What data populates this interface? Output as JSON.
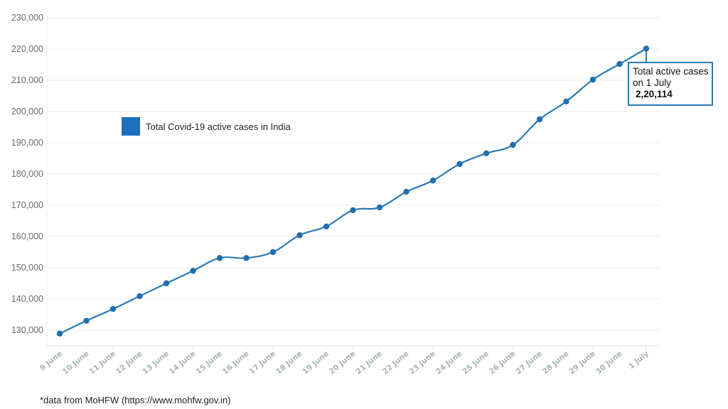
{
  "chart_data": {
    "type": "line",
    "title": "",
    "xlabel": "",
    "ylabel": "",
    "ylim": [
      125000,
      230000
    ],
    "grid": true,
    "legend_position": "inside-upper-left",
    "categories": [
      "9 June",
      "10 June",
      "11 June",
      "12 June",
      "13 June",
      "14 June",
      "15 June",
      "16 June",
      "17 June",
      "18 June",
      "19 June",
      "20 June",
      "21 June",
      "22 June",
      "23 June",
      "24 June",
      "25 June",
      "26 June",
      "27 June",
      "28 June",
      "29 June",
      "30 June",
      "1 July"
    ],
    "series": [
      {
        "name": "Total Covid-19 active cases in India",
        "color": "#2a7ab0",
        "values": [
          128900,
          133000,
          136800,
          140900,
          145000,
          149000,
          153100,
          153100,
          155000,
          160400,
          163200,
          168400,
          169300,
          174300,
          177900,
          183200,
          186600,
          189300,
          197500,
          203200,
          210200,
          215200,
          220114
        ]
      }
    ],
    "yticks": [
      "130,000",
      "140,000",
      "150,000",
      "160,000",
      "170,000",
      "180,000",
      "190,000",
      "200,000",
      "210,000",
      "220,000",
      "230,000"
    ],
    "ytick_values": [
      130000,
      140000,
      150000,
      160000,
      170000,
      180000,
      190000,
      200000,
      210000,
      220000,
      230000
    ],
    "annotations": [
      {
        "target": "1 July",
        "line1": "Total active cases",
        "line2": "on 1 July",
        "value": "2,20,114"
      }
    ]
  },
  "legend": {
    "label": "Total Covid-19 active cases in India",
    "color": "#1f6fbf"
  },
  "callout": {
    "line1": "Total active cases",
    "line2": "on 1 July",
    "value": "2,20,114"
  },
  "source": {
    "text": "*data from MoHFW (https://www.mohfw.gov.in)"
  }
}
